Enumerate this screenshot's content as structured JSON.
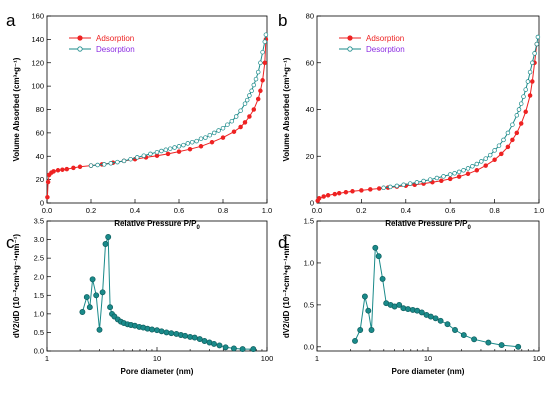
{
  "chart_data": [
    {
      "panel": "a",
      "type": "line",
      "xlabel": "Relative Pressure P/P",
      "xlabel_sub": "0",
      "ylabel": "Volume Absorbed (cm³•g⁻¹)",
      "xlim": [
        0,
        1.0
      ],
      "ylim": [
        0,
        160
      ],
      "x_ticks": [
        "0.0",
        "0.2",
        "0.4",
        "0.6",
        "0.8",
        "1.0"
      ],
      "y_ticks": [
        "0",
        "20",
        "40",
        "60",
        "80",
        "100",
        "120",
        "140",
        "160"
      ],
      "legend_position": "top-left",
      "series": [
        {
          "name": "Adsorption",
          "color": "#ee2222",
          "marker": "filled-circle",
          "x": [
            0.002,
            0.005,
            0.01,
            0.02,
            0.03,
            0.05,
            0.07,
            0.09,
            0.12,
            0.15,
            0.2,
            0.25,
            0.3,
            0.35,
            0.4,
            0.45,
            0.5,
            0.55,
            0.6,
            0.65,
            0.7,
            0.75,
            0.8,
            0.85,
            0.88,
            0.9,
            0.92,
            0.94,
            0.96,
            0.97,
            0.98,
            0.99,
            0.995
          ],
          "y": [
            5,
            18,
            24,
            26,
            27,
            28,
            28.5,
            29,
            30,
            31,
            32,
            33,
            34.5,
            36,
            37.5,
            39,
            40.5,
            42,
            44,
            46,
            48.5,
            52,
            56,
            61,
            65,
            69,
            74,
            80,
            89,
            96,
            105,
            120,
            140
          ]
        },
        {
          "name": "Desorption",
          "color": "#1a8a8a",
          "marker": "open-circle",
          "x": [
            0.995,
            0.99,
            0.98,
            0.97,
            0.96,
            0.95,
            0.94,
            0.93,
            0.92,
            0.91,
            0.9,
            0.88,
            0.86,
            0.84,
            0.82,
            0.8,
            0.78,
            0.76,
            0.74,
            0.72,
            0.7,
            0.68,
            0.66,
            0.64,
            0.62,
            0.6,
            0.58,
            0.56,
            0.54,
            0.52,
            0.5,
            0.47,
            0.44,
            0.41,
            0.38,
            0.35,
            0.32,
            0.29,
            0.26,
            0.23,
            0.2
          ],
          "y": [
            144,
            138,
            129,
            120,
            112,
            106,
            101,
            96,
            92,
            88,
            85,
            79,
            74,
            70,
            67,
            64,
            62,
            60,
            58,
            56,
            55,
            53,
            52,
            51,
            49.5,
            48.5,
            47.5,
            46.5,
            45.5,
            44.5,
            43.5,
            42,
            40.5,
            39,
            37.5,
            36,
            35,
            34,
            33,
            32.5,
            32
          ]
        }
      ]
    },
    {
      "panel": "b",
      "type": "line",
      "xlabel": "Relative Pressure P/P",
      "xlabel_sub": "0",
      "ylabel": "Volume Absorbed (cm³•g⁻¹)",
      "xlim": [
        0,
        1.0
      ],
      "ylim": [
        0,
        80
      ],
      "x_ticks": [
        "0.0",
        "0.2",
        "0.4",
        "0.6",
        "0.8",
        "1.0"
      ],
      "y_ticks": [
        "0",
        "20",
        "40",
        "60",
        "80"
      ],
      "legend_position": "top-left",
      "series": [
        {
          "name": "Adsorption",
          "color": "#ee2222",
          "marker": "filled-circle",
          "x": [
            0.003,
            0.01,
            0.03,
            0.05,
            0.08,
            0.1,
            0.13,
            0.16,
            0.2,
            0.24,
            0.28,
            0.32,
            0.36,
            0.4,
            0.44,
            0.48,
            0.52,
            0.56,
            0.6,
            0.64,
            0.68,
            0.72,
            0.76,
            0.8,
            0.83,
            0.86,
            0.88,
            0.9,
            0.92,
            0.94,
            0.96,
            0.97,
            0.98,
            0.99
          ],
          "y": [
            1,
            2,
            2.8,
            3.3,
            3.8,
            4.2,
            4.6,
            5,
            5.4,
            5.8,
            6.2,
            6.6,
            7,
            7.4,
            7.8,
            8.3,
            8.9,
            9.5,
            10.3,
            11.3,
            12.5,
            14,
            16,
            18.5,
            21,
            24,
            27,
            30,
            34,
            39,
            46,
            52,
            60,
            68
          ]
        },
        {
          "name": "Desorption",
          "color": "#1a8a8a",
          "marker": "open-circle",
          "x": [
            0.995,
            0.99,
            0.98,
            0.97,
            0.96,
            0.95,
            0.94,
            0.93,
            0.92,
            0.91,
            0.9,
            0.88,
            0.86,
            0.84,
            0.82,
            0.8,
            0.78,
            0.76,
            0.74,
            0.72,
            0.7,
            0.68,
            0.66,
            0.64,
            0.62,
            0.6,
            0.57,
            0.54,
            0.51,
            0.48,
            0.45,
            0.42,
            0.39,
            0.36,
            0.33,
            0.3
          ],
          "y": [
            71,
            68,
            64,
            60,
            56,
            52,
            48.5,
            45.5,
            42.5,
            40,
            37.5,
            33.5,
            30,
            27,
            24.5,
            22.5,
            20.5,
            19,
            17.8,
            16.7,
            15.7,
            14.8,
            14,
            13.3,
            12.7,
            12.2,
            11.4,
            10.7,
            10,
            9.4,
            8.8,
            8.3,
            7.8,
            7.3,
            6.9,
            6.5
          ]
        }
      ]
    },
    {
      "panel": "c",
      "type": "line",
      "xscale": "log",
      "xlabel": "Pore diameter (nm)",
      "ylabel": "dV2/dD (10⁻²•cm³•g⁻¹•nm⁻¹)",
      "xlim": [
        1,
        100
      ],
      "ylim": [
        0,
        3.5
      ],
      "x_ticks": [
        "1",
        "10",
        "100"
      ],
      "y_ticks": [
        "0.0",
        "0.5",
        "1.0",
        "1.5",
        "2.0",
        "2.5",
        "3.0",
        "3.5"
      ],
      "series": [
        {
          "color": "#1a8a8a",
          "marker": "filled-circle",
          "x": [
            2.1,
            2.3,
            2.45,
            2.6,
            2.8,
            3.0,
            3.2,
            3.4,
            3.6,
            3.75,
            3.9,
            4.1,
            4.4,
            4.7,
            5.0,
            5.4,
            5.8,
            6.3,
            6.9,
            7.5,
            8.2,
            9.0,
            10,
            11,
            12.2,
            13.5,
            15,
            16.5,
            18,
            20,
            22,
            24.5,
            27,
            30,
            33,
            37,
            42,
            50,
            60,
            75
          ],
          "y": [
            1.05,
            1.45,
            1.18,
            1.93,
            1.5,
            0.57,
            1.58,
            2.88,
            3.07,
            1.18,
            1.0,
            0.93,
            0.85,
            0.79,
            0.75,
            0.72,
            0.7,
            0.68,
            0.65,
            0.63,
            0.6,
            0.58,
            0.56,
            0.53,
            0.5,
            0.48,
            0.46,
            0.43,
            0.41,
            0.38,
            0.36,
            0.32,
            0.27,
            0.23,
            0.19,
            0.15,
            0.1,
            0.07,
            0.05,
            0.05
          ]
        }
      ]
    },
    {
      "panel": "d",
      "type": "line",
      "xscale": "log",
      "xlabel": "Pore diameter (nm)",
      "ylabel": "dV2/dD (10⁻²•cm³•g⁻¹•nm⁻¹)",
      "xlim": [
        1,
        100
      ],
      "ylim": [
        -0.05,
        1.5
      ],
      "x_ticks": [
        "1",
        "10",
        "100"
      ],
      "y_ticks": [
        "0.0",
        "0.5",
        "1.0",
        "1.5"
      ],
      "series": [
        {
          "color": "#1a8a8a",
          "marker": "filled-circle",
          "x": [
            2.2,
            2.45,
            2.7,
            2.9,
            3.1,
            3.35,
            3.6,
            3.9,
            4.2,
            4.6,
            5.0,
            5.5,
            6.0,
            6.6,
            7.3,
            8.0,
            8.8,
            9.7,
            10.6,
            11.7,
            13,
            15,
            17.5,
            21,
            26,
            35,
            46,
            65
          ],
          "y": [
            0.07,
            0.2,
            0.6,
            0.43,
            0.2,
            1.18,
            1.08,
            0.81,
            0.52,
            0.5,
            0.48,
            0.5,
            0.46,
            0.45,
            0.44,
            0.43,
            0.41,
            0.38,
            0.36,
            0.34,
            0.31,
            0.27,
            0.2,
            0.14,
            0.09,
            0.05,
            0.02,
            0.0
          ]
        }
      ]
    }
  ]
}
